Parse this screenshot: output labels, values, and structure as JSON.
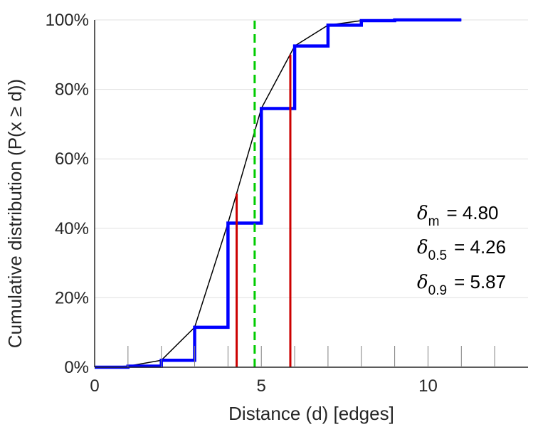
{
  "chart_data": {
    "type": "line",
    "xlabel": "Distance (d) [edges]",
    "ylabel": "Cumulative distribution (P(x ≥ d))",
    "xlim": [
      0,
      13
    ],
    "ylim": [
      0,
      100
    ],
    "x_ticks": [
      0,
      5,
      10
    ],
    "x_tick_labels": [
      "0",
      "5",
      "10"
    ],
    "y_ticks": [
      0,
      20,
      40,
      60,
      80,
      100
    ],
    "y_tick_labels": [
      "0%",
      "20%",
      "40%",
      "60%",
      "80%",
      "100%"
    ],
    "grid": "horizontal",
    "colors": {
      "step": "#0000ff",
      "smooth": "#000000",
      "mean_line": "#00cc00",
      "quantile_lines": "#cc0000",
      "grid": "#e0e0e0",
      "axis": "#262626"
    },
    "series": [
      {
        "style": "step",
        "x": [
          0,
          1,
          2,
          3,
          4,
          5,
          6,
          7,
          8,
          9,
          10,
          11
        ],
        "y": [
          0,
          0.3,
          2,
          11.5,
          41.5,
          74.5,
          92.5,
          98.5,
          99.8,
          100,
          100,
          100
        ]
      },
      {
        "style": "smooth",
        "x": [
          0,
          1,
          2,
          3,
          4,
          5,
          6,
          7,
          8,
          9,
          10,
          11
        ],
        "y": [
          0,
          0.3,
          2,
          11.5,
          41.5,
          74.5,
          92.5,
          98.5,
          99.8,
          100,
          100,
          100
        ]
      }
    ],
    "vertical_lines": [
      {
        "kind": "mean",
        "x": 4.8,
        "style": "dashed",
        "y_from": 0,
        "y_to": 100
      },
      {
        "kind": "median",
        "x": 4.26,
        "style": "solid",
        "y_from": 0,
        "y_to": 50
      },
      {
        "kind": "p90",
        "x": 5.87,
        "style": "solid",
        "y_from": 0,
        "y_to": 90
      }
    ],
    "annotations": [
      {
        "symbol": "δ",
        "subscript": "m",
        "value": "= 4.80"
      },
      {
        "symbol": "δ",
        "subscript": "0.5",
        "value": "= 4.26"
      },
      {
        "symbol": "δ",
        "subscript": "0.9",
        "value": "= 5.87"
      }
    ]
  }
}
